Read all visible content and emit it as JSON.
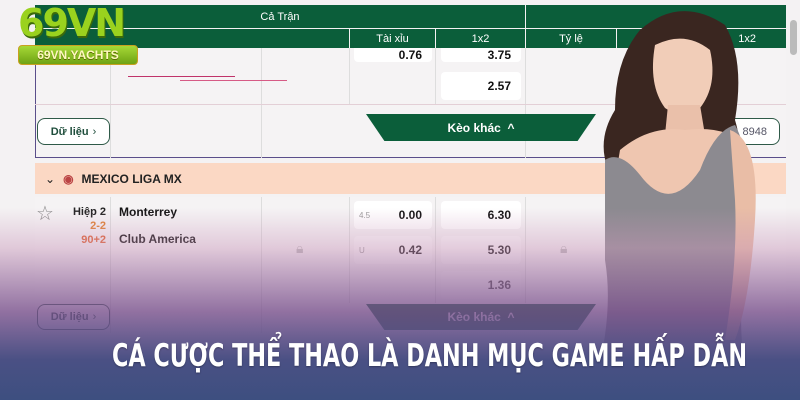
{
  "logo": {
    "brand": "69VN",
    "domain": "69VN.YACHTS"
  },
  "header": {
    "group": "Cả Trận",
    "cols": [
      "Tài xỉu",
      "1x2",
      "Tỷ lệ",
      "1x2"
    ]
  },
  "match1": {
    "over_value": "0.76",
    "x12_top": "3.75",
    "x12_draw": "2.57",
    "data_button": "Dữ liệu",
    "more_button": "Kèo khác",
    "right_button": "8948"
  },
  "league": {
    "name": "MEXICO LIGA MX"
  },
  "match2": {
    "period": "Hiệp 2",
    "score": "2-2",
    "time": "90+2",
    "home": "Monterrey",
    "away": "Club America",
    "line": "4.5",
    "over": "0.00",
    "under_label": "U",
    "under": "0.42",
    "x12": [
      "6.30",
      "5.30",
      "1.36"
    ],
    "data_button": "Dữ liệu",
    "more_button": "Kèo khác"
  },
  "headline": "CÁ CƯỢC THỂ THAO LÀ DANH MỤC GAME HẤP DẪN",
  "colors": {
    "green": "#0b5e3a",
    "league_bar": "#fbd8c4",
    "bottom": "#3d4f80"
  }
}
